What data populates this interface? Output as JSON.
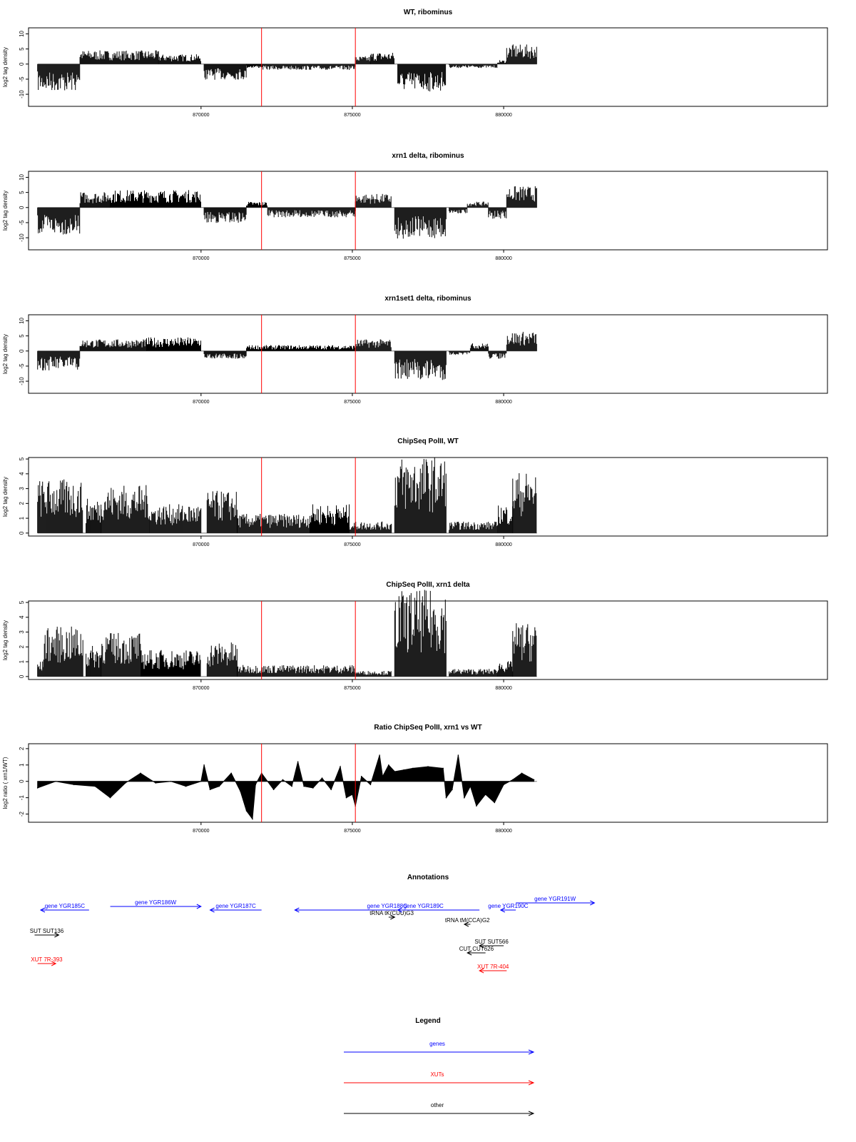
{
  "chart_data": [
    {
      "type": "bar",
      "title": "WT, ribominus",
      "ylabel": "log2 tag density",
      "xlabel": "",
      "ylim": [
        -14,
        12
      ],
      "yticks": [
        -10,
        -5,
        0,
        5,
        10
      ],
      "xlim": [
        864300,
        890700
      ],
      "xticks": [
        870000,
        875000,
        880000
      ],
      "xtick_labels": [
        "870000",
        "875000",
        "880000"
      ],
      "grid": false,
      "markers": [
        872000,
        875100
      ],
      "segments": [
        {
          "x0": 864600,
          "x1": 866000,
          "level": -7.0
        },
        {
          "x0": 866000,
          "x1": 868600,
          "level": 3.5
        },
        {
          "x0": 868600,
          "x1": 870000,
          "level": 2.5
        },
        {
          "x0": 870100,
          "x1": 871500,
          "level": -4.0
        },
        {
          "x0": 871500,
          "x1": 872000,
          "level": -1.0
        },
        {
          "x0": 872000,
          "x1": 875100,
          "level": -1.5
        },
        {
          "x0": 875100,
          "x1": 875600,
          "level": 2.0
        },
        {
          "x0": 875600,
          "x1": 876400,
          "level": 3.0
        },
        {
          "x0": 876500,
          "x1": 878100,
          "level": -7.0
        },
        {
          "x0": 878200,
          "x1": 879800,
          "level": -1.0
        },
        {
          "x0": 879800,
          "x1": 880100,
          "level": 1.0
        },
        {
          "x0": 880100,
          "x1": 881100,
          "level": 5.0
        }
      ]
    },
    {
      "type": "bar",
      "title": "xrn1 delta, ribominus",
      "ylabel": "log2 tag density",
      "xlabel": "",
      "ylim": [
        -14,
        12
      ],
      "yticks": [
        -10,
        -5,
        0,
        5,
        10
      ],
      "xlim": [
        864300,
        890700
      ],
      "xticks": [
        870000,
        875000,
        880000
      ],
      "xtick_labels": [
        "870000",
        "875000",
        "880000"
      ],
      "grid": false,
      "markers": [
        872000,
        875100
      ],
      "segments": [
        {
          "x0": 864600,
          "x1": 866000,
          "level": -7.0
        },
        {
          "x0": 866000,
          "x1": 867000,
          "level": 4.0
        },
        {
          "x0": 867000,
          "x1": 870000,
          "level": 4.5
        },
        {
          "x0": 870100,
          "x1": 871500,
          "level": -4.0
        },
        {
          "x0": 871500,
          "x1": 872200,
          "level": 1.5
        },
        {
          "x0": 872200,
          "x1": 875100,
          "level": -2.5
        },
        {
          "x0": 875100,
          "x1": 876300,
          "level": 3.5
        },
        {
          "x0": 876400,
          "x1": 878100,
          "level": -8.0
        },
        {
          "x0": 878200,
          "x1": 878800,
          "level": -1.5
        },
        {
          "x0": 878800,
          "x1": 879500,
          "level": 1.5
        },
        {
          "x0": 879500,
          "x1": 880100,
          "level": -3.0
        },
        {
          "x0": 880100,
          "x1": 881100,
          "level": 5.5
        }
      ]
    },
    {
      "type": "bar",
      "title": "xrn1set1 delta, ribominus",
      "ylabel": "log2 tag density",
      "xlabel": "",
      "ylim": [
        -14,
        12
      ],
      "yticks": [
        -10,
        -5,
        0,
        5,
        10
      ],
      "xlim": [
        864300,
        890700
      ],
      "xticks": [
        870000,
        875000,
        880000
      ],
      "xtick_labels": [
        "870000",
        "875000",
        "880000"
      ],
      "grid": false,
      "markers": [
        872000,
        875100
      ],
      "segments": [
        {
          "x0": 864600,
          "x1": 866000,
          "level": -5.0
        },
        {
          "x0": 866000,
          "x1": 868200,
          "level": 3.0
        },
        {
          "x0": 868200,
          "x1": 870000,
          "level": 3.5
        },
        {
          "x0": 870100,
          "x1": 871500,
          "level": -2.0
        },
        {
          "x0": 871500,
          "x1": 875100,
          "level": 1.5
        },
        {
          "x0": 875100,
          "x1": 876300,
          "level": 3.0
        },
        {
          "x0": 876400,
          "x1": 878100,
          "level": -7.5
        },
        {
          "x0": 878200,
          "x1": 878900,
          "level": -1.0
        },
        {
          "x0": 878900,
          "x1": 879500,
          "level": 2.0
        },
        {
          "x0": 879500,
          "x1": 880100,
          "level": -2.0
        },
        {
          "x0": 880100,
          "x1": 881100,
          "level": 5.0
        }
      ]
    },
    {
      "type": "bar",
      "title": "ChipSeq PolII, WT",
      "ylabel": "log2 tag density",
      "xlabel": "",
      "ylim": [
        -0.2,
        5.1
      ],
      "yticks": [
        0,
        1,
        2,
        3,
        4,
        5
      ],
      "xlim": [
        864300,
        890700
      ],
      "xticks": [
        870000,
        875000,
        880000
      ],
      "xtick_labels": [
        "870000",
        "875000",
        "880000"
      ],
      "grid": false,
      "markers": [
        872000,
        875100
      ],
      "segments": [
        {
          "x0": 864600,
          "x1": 866100,
          "level": 2.8
        },
        {
          "x0": 866200,
          "x1": 866700,
          "level": 1.8
        },
        {
          "x0": 866700,
          "x1": 868300,
          "level": 2.5
        },
        {
          "x0": 868300,
          "x1": 870000,
          "level": 1.5
        },
        {
          "x0": 870200,
          "x1": 871200,
          "level": 2.2
        },
        {
          "x0": 871200,
          "x1": 873600,
          "level": 1.0
        },
        {
          "x0": 873600,
          "x1": 874900,
          "level": 1.5
        },
        {
          "x0": 874900,
          "x1": 876300,
          "level": 0.6
        },
        {
          "x0": 876400,
          "x1": 878100,
          "level": 4.0
        },
        {
          "x0": 878200,
          "x1": 879800,
          "level": 0.6
        },
        {
          "x0": 879800,
          "x1": 880300,
          "level": 1.5
        },
        {
          "x0": 880300,
          "x1": 881100,
          "level": 3.2
        }
      ]
    },
    {
      "type": "bar",
      "title": "ChipSeq PolII, xrn1 delta",
      "ylabel": "log2 tag density",
      "xlabel": "",
      "ylim": [
        -0.2,
        5.1
      ],
      "yticks": [
        0,
        1,
        2,
        3,
        4,
        5
      ],
      "xlim": [
        864300,
        890700
      ],
      "xticks": [
        870000,
        875000,
        880000
      ],
      "xtick_labels": [
        "870000",
        "875000",
        "880000"
      ],
      "grid": false,
      "markers": [
        872000,
        875100
      ],
      "segments": [
        {
          "x0": 864600,
          "x1": 864800,
          "level": 0.8
        },
        {
          "x0": 864800,
          "x1": 866100,
          "level": 2.6
        },
        {
          "x0": 866200,
          "x1": 866700,
          "level": 1.6
        },
        {
          "x0": 866700,
          "x1": 868000,
          "level": 2.3
        },
        {
          "x0": 868000,
          "x1": 870000,
          "level": 1.4
        },
        {
          "x0": 870200,
          "x1": 871200,
          "level": 1.8
        },
        {
          "x0": 871200,
          "x1": 875100,
          "level": 0.6
        },
        {
          "x0": 875100,
          "x1": 876300,
          "level": 0.3
        },
        {
          "x0": 876400,
          "x1": 878100,
          "level": 4.5
        },
        {
          "x0": 878200,
          "x1": 879800,
          "level": 0.4
        },
        {
          "x0": 879800,
          "x1": 880300,
          "level": 0.8
        },
        {
          "x0": 880300,
          "x1": 881100,
          "level": 2.8
        }
      ]
    },
    {
      "type": "area",
      "title": "Ratio ChipSeq PolII, xrn1 vs WT",
      "ylabel": "log2 ratio ( xrn1/WT)",
      "xlabel": "",
      "ylim": [
        -2.5,
        2.3
      ],
      "yticks": [
        -2,
        -1,
        0,
        1,
        2
      ],
      "xlim": [
        864300,
        890700
      ],
      "xticks": [
        870000,
        875000,
        880000
      ],
      "xtick_labels": [
        "870000",
        "875000",
        "880000"
      ],
      "grid": false,
      "markers": [
        872000,
        875100
      ],
      "x": [
        864600,
        865200,
        865800,
        866500,
        867000,
        867500,
        868000,
        868500,
        869000,
        869500,
        870000,
        870100,
        870300,
        870600,
        871000,
        871300,
        871500,
        871700,
        871800,
        872000,
        872400,
        872700,
        873000,
        873200,
        873400,
        873700,
        874000,
        874300,
        874600,
        874800,
        875000,
        875100,
        875300,
        875600,
        875900,
        876000,
        876200,
        876400,
        876700,
        877000,
        877500,
        878000,
        878100,
        878300,
        878500,
        878700,
        878900,
        879100,
        879400,
        879700,
        880000,
        880300,
        880600,
        881000
      ],
      "y": [
        -0.4,
        0.0,
        -0.2,
        -0.3,
        -1.0,
        -0.1,
        0.5,
        -0.1,
        0.0,
        -0.3,
        0.0,
        1.0,
        -0.5,
        -0.3,
        0.5,
        -0.6,
        -1.8,
        -2.3,
        -0.2,
        0.5,
        -0.5,
        0.1,
        -0.3,
        1.2,
        -0.3,
        -0.4,
        0.2,
        -0.5,
        0.9,
        -1.0,
        -0.8,
        -1.5,
        0.3,
        -0.2,
        1.6,
        0.3,
        1.0,
        0.6,
        0.7,
        0.8,
        0.9,
        0.8,
        -1.0,
        -0.5,
        1.6,
        -1.0,
        -0.3,
        -1.5,
        -0.8,
        -1.3,
        -0.2,
        0.1,
        0.5,
        0.1
      ]
    }
  ],
  "annotations": {
    "title": "Annotations",
    "features": [
      {
        "label": "gene YGR185C",
        "kind": "genes",
        "strand": "-",
        "x0": 864700,
        "x1": 866300
      },
      {
        "label": "gene YGR186W",
        "kind": "genes",
        "strand": "+",
        "x0": 867000,
        "x1": 870000
      },
      {
        "label": "gene YGR187C",
        "kind": "genes",
        "strand": "-",
        "x0": 870300,
        "x1": 872000
      },
      {
        "label": "gene YGR188C",
        "kind": "genes",
        "strand": "-",
        "x0": 873100,
        "x1": 879200
      },
      {
        "label": "tRNA tK(CUU)G3",
        "kind": "other",
        "strand": "+",
        "x0": 876200,
        "x1": 876400
      },
      {
        "label": "gene YGR189C",
        "kind": "genes",
        "strand": "-",
        "x0": 876500,
        "x1": 878200
      },
      {
        "label": "tRNA tM(CCA)G2",
        "kind": "other",
        "strand": "-",
        "x0": 878700,
        "x1": 878900
      },
      {
        "label": "gene YGR190C",
        "kind": "genes",
        "strand": "-",
        "x0": 879900,
        "x1": 880400
      },
      {
        "label": "gene YGR191W",
        "kind": "genes",
        "strand": "+",
        "x0": 880400,
        "x1": 883000
      },
      {
        "label": "SUT SUT136",
        "kind": "other",
        "strand": "+",
        "x0": 864500,
        "x1": 865300
      },
      {
        "label": "SUT SUT566",
        "kind": "other",
        "strand": "-",
        "x0": 879200,
        "x1": 880000
      },
      {
        "label": "CUT CUT626",
        "kind": "other",
        "strand": "-",
        "x0": 878800,
        "x1": 879400
      },
      {
        "label": "XUT 7R-393",
        "kind": "XUTs",
        "strand": "+",
        "x0": 864600,
        "x1": 865200
      },
      {
        "label": "XUT 7R-404",
        "kind": "XUTs",
        "strand": "-",
        "x0": 879200,
        "x1": 880100
      }
    ]
  },
  "legend": {
    "title": "Legend",
    "items": [
      {
        "label": "genes",
        "color": "#0000ff"
      },
      {
        "label": "XUTs",
        "color": "#ff0000"
      },
      {
        "label": "other",
        "color": "#000000"
      }
    ]
  },
  "colors": {
    "genes": "#0000ff",
    "XUTs": "#ff0000",
    "other": "#000000",
    "marker": "#ff0000",
    "bars": "#000000"
  }
}
